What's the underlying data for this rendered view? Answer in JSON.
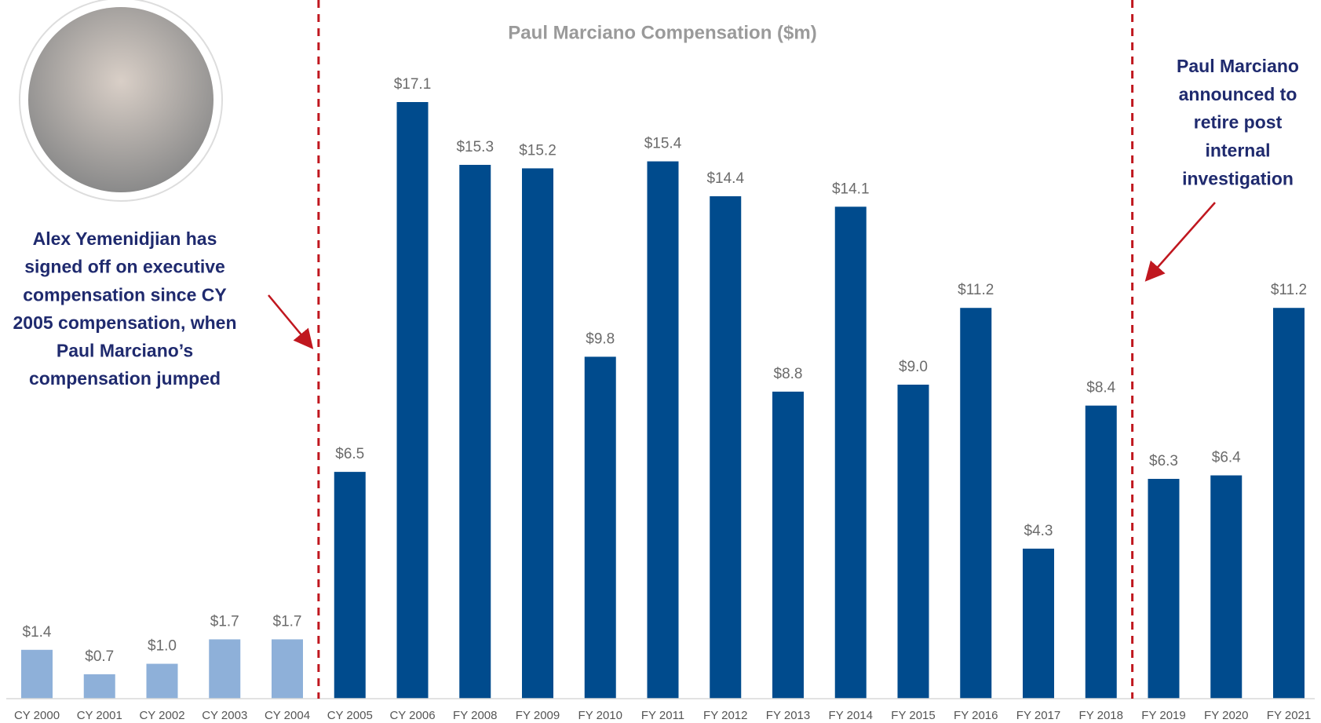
{
  "chart_data": {
    "type": "bar",
    "title": "Paul Marciano Compensation ($m)",
    "categories": [
      "CY 2000",
      "CY 2001",
      "CY 2002",
      "CY 2003",
      "CY 2004",
      "CY 2005",
      "CY 2006",
      "FY 2008",
      "FY 2009",
      "FY 2010",
      "FY 2011",
      "FY 2012",
      "FY 2013",
      "FY 2014",
      "FY 2015",
      "FY 2016",
      "FY 2017",
      "FY 2018",
      "FY 2019",
      "FY 2020",
      "FY 2021"
    ],
    "values": [
      1.4,
      0.7,
      1.0,
      1.7,
      1.7,
      6.5,
      17.1,
      15.3,
      15.2,
      9.8,
      15.4,
      14.4,
      8.8,
      14.1,
      9.0,
      11.2,
      4.3,
      8.4,
      6.3,
      6.4,
      11.2
    ],
    "value_labels": [
      "$1.4",
      "$0.7",
      "$1.0",
      "$1.7",
      "$1.7",
      "$6.5",
      "$17.1",
      "$15.3",
      "$15.2",
      "$9.8",
      "$15.4",
      "$14.4",
      "$8.8",
      "$14.1",
      "$9.0",
      "$11.2",
      "$4.3",
      "$8.4",
      "$6.3",
      "$6.4",
      "$11.2"
    ],
    "colors": [
      "#8eb0d9",
      "#8eb0d9",
      "#8eb0d9",
      "#8eb0d9",
      "#8eb0d9",
      "#004b8d",
      "#004b8d",
      "#004b8d",
      "#004b8d",
      "#004b8d",
      "#004b8d",
      "#004b8d",
      "#004b8d",
      "#004b8d",
      "#004b8d",
      "#004b8d",
      "#004b8d",
      "#004b8d",
      "#004b8d",
      "#004b8d",
      "#004b8d"
    ],
    "annotations": [
      {
        "lines": [
          "Alex Yemenidjian has",
          "signed off on executive",
          "compensation since CY",
          "2005 compensation, when",
          "Paul Marciano’s",
          "compensation jumped"
        ]
      },
      {
        "lines": [
          "Paul Marciano",
          "announced to",
          "retire post",
          "internal",
          "investigation"
        ]
      }
    ]
  }
}
